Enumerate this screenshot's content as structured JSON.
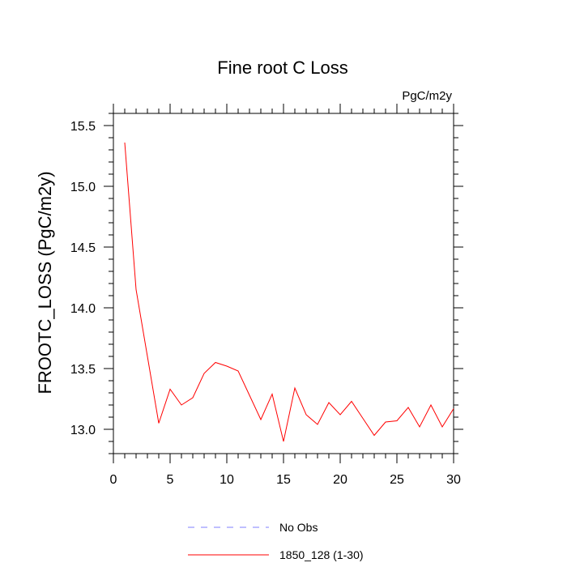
{
  "chart_data": {
    "type": "line",
    "title": "Fine root C Loss",
    "units_label": "PgC/m2y",
    "xlabel": "",
    "ylabel": "FROOTC_LOSS  (PgC/m2y)",
    "xlim": [
      0,
      30
    ],
    "ylim": [
      12.8,
      15.6
    ],
    "x_ticks": [
      0,
      5,
      10,
      15,
      20,
      25,
      30
    ],
    "y_ticks": [
      13.0,
      13.5,
      14.0,
      14.5,
      15.0,
      15.5
    ],
    "grid": false,
    "legend_position": "bottom",
    "series": [
      {
        "name": "No Obs",
        "color": "#7f7fff",
        "dash": "dashed",
        "x": [],
        "y": []
      },
      {
        "name": "1850_128 (1-30)",
        "color": "#ff0000",
        "dash": "solid",
        "x": [
          1,
          2,
          3,
          4,
          5,
          6,
          7,
          8,
          9,
          10,
          11,
          12,
          13,
          14,
          15,
          16,
          17,
          18,
          19,
          20,
          21,
          22,
          23,
          24,
          25,
          26,
          27,
          28,
          29,
          30
        ],
        "y": [
          15.36,
          14.15,
          13.6,
          13.05,
          13.33,
          13.2,
          13.26,
          13.46,
          13.55,
          13.52,
          13.48,
          13.28,
          13.08,
          13.29,
          12.9,
          13.34,
          13.12,
          13.04,
          13.22,
          13.12,
          13.23,
          13.09,
          12.95,
          13.06,
          13.07,
          13.18,
          13.02,
          13.2,
          13.02,
          13.17
        ]
      }
    ]
  }
}
